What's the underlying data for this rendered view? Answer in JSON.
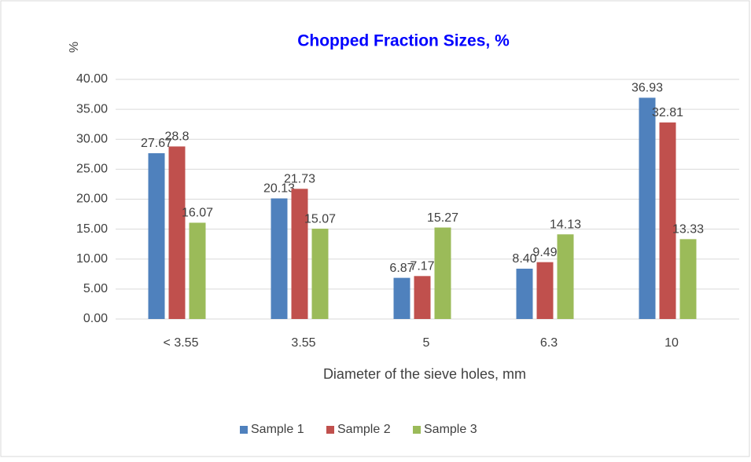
{
  "chart_data": {
    "type": "bar",
    "title": "Chopped Fraction Sizes, %",
    "y_label": "%",
    "x_label": "Diameter of the sieve holes, mm",
    "categories": [
      "< 3.55",
      "3.55",
      "5",
      "6.3",
      "10"
    ],
    "series": [
      {
        "name": "Sample 1",
        "color": "#4f81bd",
        "values": [
          27.67,
          20.13,
          6.87,
          8.4,
          36.93
        ],
        "value_labels": [
          "27.67",
          "20.13",
          "6.87",
          "8.40",
          "36.93"
        ]
      },
      {
        "name": "Sample 2",
        "color": "#c0504d",
        "values": [
          28.8,
          21.73,
          7.17,
          9.49,
          32.81
        ],
        "value_labels": [
          "28.8",
          "21.73",
          "7.17",
          "9.49",
          "32.81"
        ]
      },
      {
        "name": "Sample 3",
        "color": "#9bbb59",
        "values": [
          16.07,
          15.07,
          15.27,
          14.13,
          13.33
        ],
        "value_labels": [
          "16.07",
          "15.07",
          "15.27",
          "14.13",
          "13.33"
        ]
      }
    ],
    "ylim": [
      0,
      40
    ],
    "yticks": [
      {
        "value": 0,
        "label": "0.00"
      },
      {
        "value": 5,
        "label": "5.00"
      },
      {
        "value": 10,
        "label": "10.00"
      },
      {
        "value": 15,
        "label": "15.00"
      },
      {
        "value": 20,
        "label": "20.00"
      },
      {
        "value": 25,
        "label": "25.00"
      },
      {
        "value": 30,
        "label": "30.00"
      },
      {
        "value": 35,
        "label": "35.00"
      },
      {
        "value": 40,
        "label": "40.00"
      }
    ],
    "grid": true,
    "legend": "bottom"
  }
}
